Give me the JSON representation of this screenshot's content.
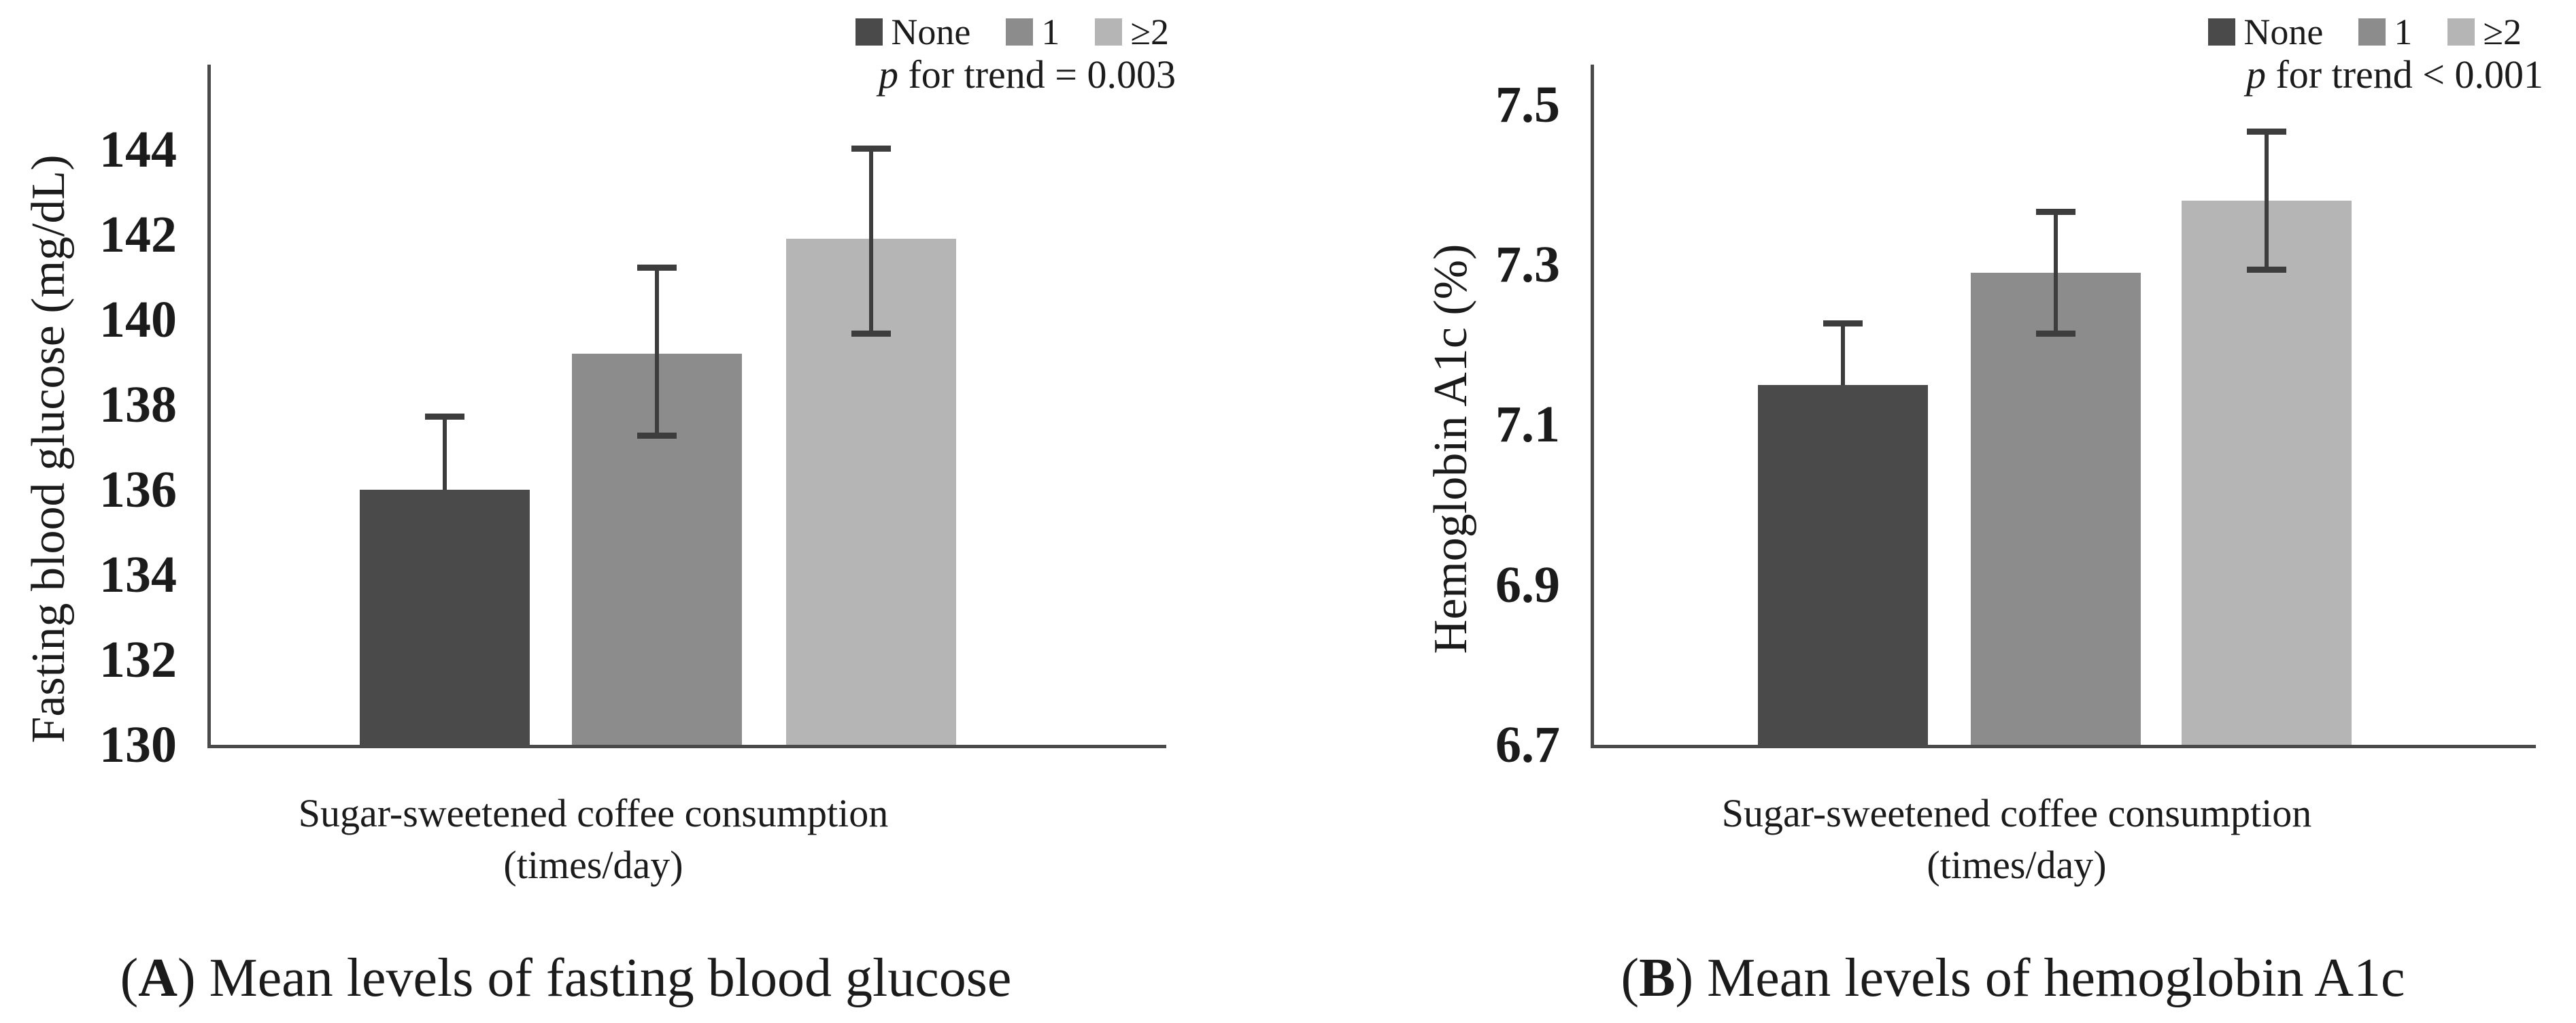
{
  "chart_data": [
    {
      "type": "bar",
      "panel": "A",
      "categories": [
        "None",
        "1",
        "≥2"
      ],
      "values": [
        136.0,
        139.2,
        141.9
      ],
      "errors": [
        {
          "low": null,
          "high": 137.8
        },
        {
          "low": 137.2,
          "high": 141.3
        },
        {
          "low": 139.6,
          "high": 144.1
        }
      ],
      "bar_colors": [
        "#4a4a4a",
        "#8c8c8c",
        "#b5b5b5"
      ],
      "bar_centers_pct": [
        24.5,
        46.7,
        69.1
      ],
      "title": "",
      "xlabel": [
        "Sugar-sweetened coffee consumption",
        "(times/day)"
      ],
      "ylabel": "Fasting blood glucose (mg/dL)",
      "ylim": [
        130,
        146
      ],
      "yticks": [
        130,
        132,
        134,
        136,
        138,
        140,
        142,
        144
      ],
      "ytick_labels": [
        "130",
        "132",
        "134",
        "136",
        "138",
        "140",
        "142",
        "144"
      ],
      "legend": [
        "None",
        "1",
        "≥2"
      ],
      "legend_position": "top-right",
      "grid": false,
      "annotation": {
        "p_italic": "p",
        "p_rest": " for trend = 0.003"
      },
      "caption": {
        "pre": "(",
        "letter": "A",
        "post": ") ",
        "text": "Mean levels of fasting blood glucose"
      }
    },
    {
      "type": "bar",
      "panel": "B",
      "categories": [
        "None",
        "1",
        "≥2"
      ],
      "values": [
        7.15,
        7.29,
        7.38
      ],
      "errors": [
        {
          "low": null,
          "high": 7.23
        },
        {
          "low": 7.21,
          "high": 7.37
        },
        {
          "low": 7.29,
          "high": 7.47
        }
      ],
      "bar_colors": [
        "#4a4a4a",
        "#8c8c8c",
        "#b5b5b5"
      ],
      "bar_centers_pct": [
        26.4,
        49.0,
        71.4
      ],
      "title": "",
      "xlabel": [
        "Sugar-sweetened coffee consumption",
        "(times/day)"
      ],
      "ylabel": "Hemoglobin A1c (%)",
      "ylim": [
        6.7,
        7.55
      ],
      "yticks": [
        6.7,
        6.9,
        7.1,
        7.3,
        7.5
      ],
      "ytick_labels": [
        "6.7",
        "6.9",
        "7.1",
        "7.3",
        "7.5"
      ],
      "legend": [
        "None",
        "1",
        "≥2"
      ],
      "legend_position": "top-right",
      "grid": false,
      "annotation": {
        "p_italic": "p",
        "p_rest": " for trend < 0.001"
      },
      "caption": {
        "pre": "(",
        "letter": "B",
        "post": ") ",
        "text": "Mean levels of hemoglobin A1c"
      }
    }
  ]
}
